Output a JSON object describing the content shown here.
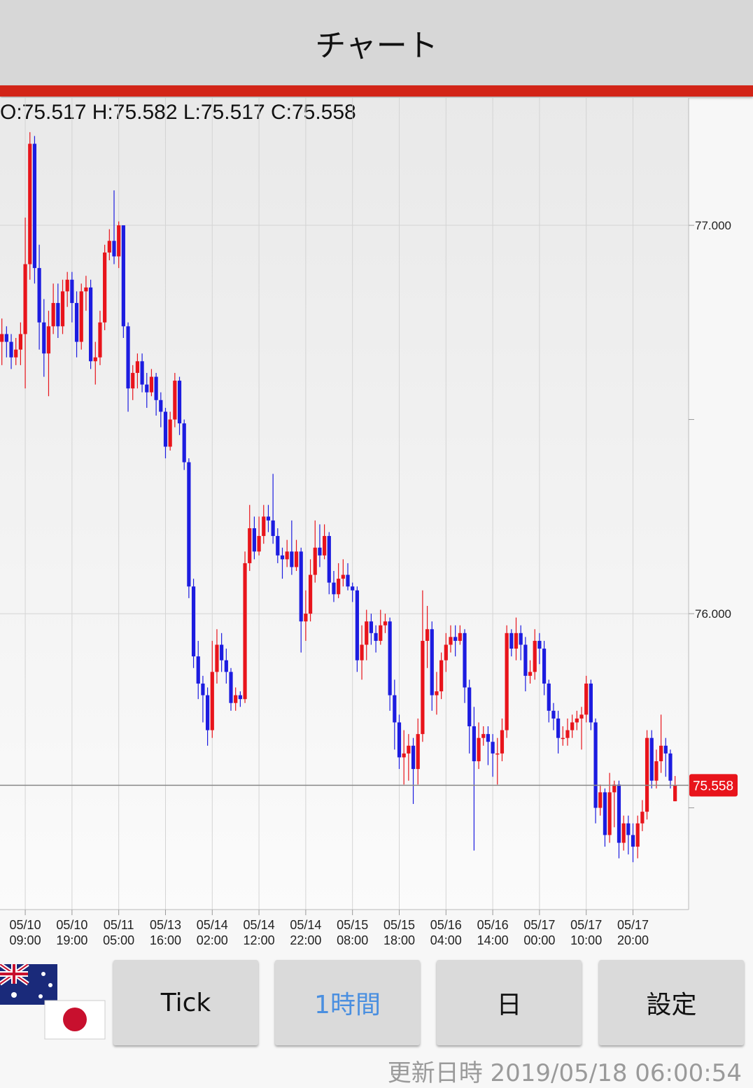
{
  "header": {
    "title": "チャート"
  },
  "chart_data": {
    "type": "candlestick",
    "ohlc_label": "O:75.517 H:75.582 L:75.517 C:75.558",
    "up_color": "#e8141b",
    "down_color": "#1c1ce0",
    "xlim": [
      -0.4,
      146.9
    ],
    "ylim": [
      75.238,
      77.328
    ],
    "yticks": [
      {
        "value": 77,
        "label": "77.000"
      },
      {
        "value": 76.5,
        "label": null
      },
      {
        "value": 76,
        "label": "76.000"
      },
      {
        "value": 75.5,
        "label": null
      }
    ],
    "xticks": [
      {
        "value": 5,
        "label": "05/10 09:00"
      },
      {
        "value": 15,
        "label": "05/10 19:00"
      },
      {
        "value": 25,
        "label": "05/11 05:00"
      },
      {
        "value": 35,
        "label": "05/13 16:00"
      },
      {
        "value": 45,
        "label": "05/14 02:00"
      },
      {
        "value": 55,
        "label": "05/14 12:00"
      },
      {
        "value": 65,
        "label": "05/14 22:00"
      },
      {
        "value": 75,
        "label": "05/15 08:00"
      },
      {
        "value": 85,
        "label": "05/15 18:00"
      },
      {
        "value": 95,
        "label": "05/16 04:00"
      },
      {
        "value": 105,
        "label": "05/16 14:00"
      },
      {
        "value": 115,
        "label": "05/17 00:00"
      },
      {
        "value": 125,
        "label": "05/17 10:00"
      },
      {
        "value": 135,
        "label": "05/17 20:00"
      }
    ],
    "grid": true,
    "last_price": 75.558,
    "candles": [
      [
        76.7,
        76.76,
        76.64,
        76.72
      ],
      [
        76.72,
        76.74,
        76.66,
        76.7
      ],
      [
        76.7,
        76.72,
        76.63,
        76.66
      ],
      [
        76.66,
        76.71,
        76.64,
        76.68
      ],
      [
        76.68,
        76.75,
        76.64,
        76.72
      ],
      [
        76.72,
        77.02,
        76.58,
        76.9
      ],
      [
        76.9,
        77.24,
        76.86,
        77.21
      ],
      [
        77.21,
        77.23,
        76.85,
        76.89
      ],
      [
        76.89,
        76.95,
        76.68,
        76.75
      ],
      [
        76.75,
        76.81,
        76.61,
        76.67
      ],
      [
        76.67,
        76.78,
        76.56,
        76.74
      ],
      [
        76.74,
        76.85,
        76.72,
        76.8
      ],
      [
        76.8,
        76.85,
        76.71,
        76.74
      ],
      [
        76.74,
        76.86,
        76.72,
        76.83
      ],
      [
        76.83,
        76.88,
        76.79,
        76.86
      ],
      [
        76.86,
        76.88,
        76.75,
        76.8
      ],
      [
        76.8,
        76.83,
        76.66,
        76.7
      ],
      [
        76.7,
        76.85,
        76.68,
        76.83
      ],
      [
        76.83,
        76.87,
        76.78,
        76.84
      ],
      [
        76.84,
        76.86,
        76.63,
        76.65
      ],
      [
        76.65,
        76.7,
        76.59,
        76.66
      ],
      [
        76.66,
        76.78,
        76.64,
        76.75
      ],
      [
        76.75,
        76.95,
        76.73,
        76.93
      ],
      [
        76.93,
        76.99,
        76.91,
        76.96
      ],
      [
        76.96,
        77.09,
        76.9,
        76.92
      ],
      [
        76.92,
        77.01,
        76.89,
        77.0
      ],
      [
        77.0,
        77.0,
        76.71,
        76.74
      ],
      [
        76.74,
        76.75,
        76.52,
        76.58
      ],
      [
        76.58,
        76.64,
        76.55,
        76.62
      ],
      [
        76.62,
        76.67,
        76.58,
        76.65
      ],
      [
        76.65,
        76.67,
        76.57,
        76.59
      ],
      [
        76.59,
        76.62,
        76.53,
        76.57
      ],
      [
        76.57,
        76.63,
        76.56,
        76.61
      ],
      [
        76.61,
        76.62,
        76.51,
        76.55
      ],
      [
        76.55,
        76.57,
        76.48,
        76.52
      ],
      [
        76.52,
        76.53,
        76.4,
        76.43
      ],
      [
        76.43,
        76.52,
        76.42,
        76.5
      ],
      [
        76.5,
        76.62,
        76.48,
        76.6
      ],
      [
        76.6,
        76.61,
        76.46,
        76.49
      ],
      [
        76.49,
        76.5,
        76.37,
        76.39
      ],
      [
        76.39,
        76.4,
        76.04,
        76.07
      ],
      [
        76.07,
        76.09,
        75.86,
        75.89
      ],
      [
        75.89,
        75.93,
        75.78,
        75.82
      ],
      [
        75.82,
        75.84,
        75.72,
        75.79
      ],
      [
        75.79,
        75.81,
        75.66,
        75.7
      ],
      [
        75.7,
        75.93,
        75.68,
        75.85
      ],
      [
        75.85,
        75.96,
        75.82,
        75.92
      ],
      [
        75.92,
        75.95,
        75.85,
        75.88
      ],
      [
        75.88,
        75.91,
        75.82,
        75.85
      ],
      [
        75.85,
        75.86,
        75.75,
        75.77
      ],
      [
        75.77,
        75.81,
        75.75,
        75.79
      ],
      [
        75.79,
        75.8,
        75.76,
        75.78
      ],
      [
        75.78,
        76.16,
        75.77,
        76.13
      ],
      [
        76.13,
        76.28,
        76.11,
        76.22
      ],
      [
        76.22,
        76.25,
        76.14,
        76.16
      ],
      [
        76.16,
        76.25,
        76.15,
        76.2
      ],
      [
        76.2,
        76.28,
        76.18,
        76.25
      ],
      [
        76.25,
        76.28,
        76.21,
        76.24
      ],
      [
        76.24,
        76.36,
        76.18,
        76.2
      ],
      [
        76.2,
        76.22,
        76.13,
        76.15
      ],
      [
        76.15,
        76.17,
        76.09,
        76.14
      ],
      [
        76.14,
        76.19,
        76.12,
        76.16
      ],
      [
        76.16,
        76.24,
        76.1,
        76.12
      ],
      [
        76.12,
        76.19,
        76.11,
        76.16
      ],
      [
        76.16,
        76.17,
        75.9,
        75.98
      ],
      [
        75.98,
        76.06,
        75.93,
        76.0
      ],
      [
        76.0,
        76.14,
        75.98,
        76.1
      ],
      [
        76.1,
        76.24,
        76.08,
        76.17
      ],
      [
        76.17,
        76.23,
        76.12,
        76.15
      ],
      [
        76.15,
        76.23,
        76.14,
        76.2
      ],
      [
        76.2,
        76.21,
        76.05,
        76.08
      ],
      [
        76.08,
        76.11,
        76.03,
        76.05
      ],
      [
        76.05,
        76.13,
        76.04,
        76.09
      ],
      [
        76.09,
        76.14,
        76.07,
        76.1
      ],
      [
        76.1,
        76.13,
        76.06,
        76.07
      ],
      [
        76.07,
        76.08,
        76.03,
        76.06
      ],
      [
        76.06,
        76.07,
        75.85,
        75.88
      ],
      [
        75.88,
        75.97,
        75.83,
        75.92
      ],
      [
        75.92,
        76.01,
        75.88,
        75.98
      ],
      [
        75.98,
        76.0,
        75.92,
        75.95
      ],
      [
        75.95,
        75.97,
        75.9,
        75.93
      ],
      [
        75.93,
        76.01,
        75.92,
        75.97
      ],
      [
        75.97,
        76.0,
        75.95,
        75.98
      ],
      [
        75.98,
        75.99,
        75.75,
        75.79
      ],
      [
        75.79,
        75.83,
        75.65,
        75.72
      ],
      [
        75.72,
        75.74,
        75.6,
        75.63
      ],
      [
        75.63,
        75.7,
        75.56,
        75.64
      ],
      [
        75.64,
        75.69,
        75.57,
        75.66
      ],
      [
        75.66,
        75.68,
        75.51,
        75.6
      ],
      [
        75.6,
        75.73,
        75.56,
        75.69
      ],
      [
        75.69,
        76.06,
        75.67,
        75.93
      ],
      [
        75.93,
        76.02,
        75.86,
        75.96
      ],
      [
        75.96,
        75.98,
        75.75,
        75.79
      ],
      [
        75.79,
        75.85,
        75.74,
        75.8
      ],
      [
        75.8,
        75.9,
        75.78,
        75.88
      ],
      [
        75.88,
        75.95,
        75.85,
        75.92
      ],
      [
        75.92,
        75.97,
        75.9,
        75.94
      ],
      [
        75.94,
        75.97,
        75.89,
        75.93
      ],
      [
        75.93,
        75.97,
        75.92,
        75.95
      ],
      [
        75.95,
        75.96,
        75.77,
        75.81
      ],
      [
        75.81,
        75.83,
        75.64,
        75.71
      ],
      [
        75.71,
        75.76,
        75.39,
        75.62
      ],
      [
        75.62,
        75.72,
        75.6,
        75.68
      ],
      [
        75.68,
        75.71,
        75.66,
        75.69
      ],
      [
        75.69,
        75.71,
        75.61,
        75.67
      ],
      [
        75.67,
        75.69,
        75.58,
        75.64
      ],
      [
        75.64,
        75.68,
        75.56,
        75.64
      ],
      [
        75.64,
        75.73,
        75.62,
        75.7
      ],
      [
        75.7,
        75.97,
        75.68,
        75.95
      ],
      [
        75.95,
        75.96,
        75.89,
        75.91
      ],
      [
        75.91,
        75.99,
        75.88,
        75.95
      ],
      [
        75.95,
        75.97,
        75.88,
        75.92
      ],
      [
        75.92,
        75.94,
        75.8,
        75.84
      ],
      [
        75.84,
        75.88,
        75.82,
        75.85
      ],
      [
        75.85,
        75.96,
        75.83,
        75.93
      ],
      [
        75.93,
        75.95,
        75.87,
        75.91
      ],
      [
        75.91,
        75.93,
        75.79,
        75.82
      ],
      [
        75.82,
        75.83,
        75.72,
        75.75
      ],
      [
        75.75,
        75.77,
        75.7,
        75.73
      ],
      [
        75.73,
        75.75,
        75.64,
        75.68
      ],
      [
        75.68,
        75.71,
        75.66,
        75.68
      ],
      [
        75.68,
        75.73,
        75.66,
        75.7
      ],
      [
        75.7,
        75.74,
        75.68,
        75.72
      ],
      [
        75.72,
        75.75,
        75.7,
        75.73
      ],
      [
        75.73,
        75.76,
        75.65,
        75.74
      ],
      [
        75.74,
        75.84,
        75.72,
        75.82
      ],
      [
        75.82,
        75.83,
        75.7,
        75.72
      ],
      [
        75.72,
        75.73,
        75.46,
        75.5
      ],
      [
        75.5,
        75.56,
        75.48,
        75.54
      ],
      [
        75.54,
        75.55,
        75.4,
        75.43
      ],
      [
        75.43,
        75.59,
        75.41,
        75.54
      ],
      [
        75.54,
        75.57,
        75.45,
        75.56
      ],
      [
        75.56,
        75.57,
        75.37,
        75.41
      ],
      [
        75.41,
        75.48,
        75.39,
        75.46
      ],
      [
        75.46,
        75.48,
        75.38,
        75.43
      ],
      [
        75.43,
        75.46,
        75.36,
        75.4
      ],
      [
        75.4,
        75.48,
        75.37,
        75.46
      ],
      [
        75.46,
        75.52,
        75.44,
        75.49
      ],
      [
        75.49,
        75.7,
        75.47,
        75.68
      ],
      [
        75.68,
        75.7,
        75.55,
        75.57
      ],
      [
        75.57,
        75.65,
        75.55,
        75.62
      ],
      [
        75.62,
        75.74,
        75.59,
        75.66
      ],
      [
        75.66,
        75.68,
        75.58,
        75.64
      ],
      [
        75.64,
        75.65,
        75.55,
        75.57
      ],
      [
        75.517,
        75.582,
        75.517,
        75.558
      ]
    ]
  },
  "buttons": [
    "Tick",
    "1時間",
    "日",
    "設定"
  ],
  "selected_button": 1,
  "footer": "更新日時 2019/05/18 06:00:54"
}
